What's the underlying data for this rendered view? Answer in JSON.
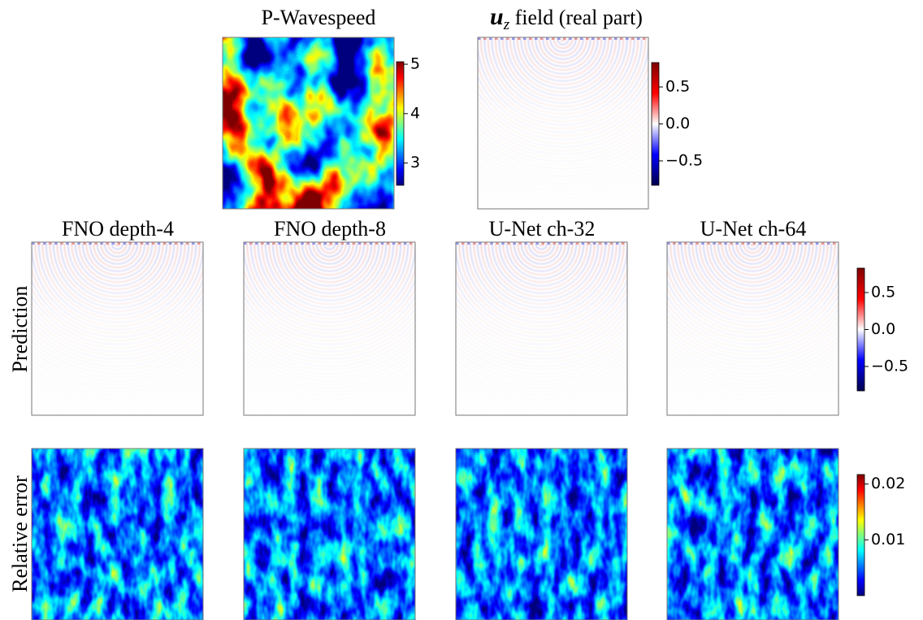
{
  "top_panels": [
    {
      "title": "P-Wavespeed"
    },
    {
      "title_symbol": "u",
      "title_subscript": "z",
      "title_text": " field (real part)"
    }
  ],
  "column_titles": [
    "FNO depth-4",
    "FNO depth-8",
    "U-Net ch-32",
    "U-Net ch-64"
  ],
  "row_labels": [
    "Prediction",
    "Relative error"
  ],
  "colorbars": [
    {
      "colormap": "jet",
      "lim": [
        2.55,
        5.05
      ],
      "ticks": [
        3,
        4,
        5
      ]
    },
    {
      "colormap": "seismic",
      "lim": [
        -0.83,
        0.83
      ],
      "ticks": [
        {
          "value": -0.5,
          "label": "−0.5"
        },
        {
          "value": 0,
          "label": "0.0"
        },
        0.5
      ]
    },
    {
      "colormap": "seismic",
      "lim": [
        -0.83,
        0.83
      ],
      "ticks": [
        {
          "value": -0.5,
          "label": "−0.5"
        },
        {
          "value": 0,
          "label": "0.0"
        },
        0.5
      ]
    },
    {
      "colormap": "jet",
      "lim": [
        0,
        0.0217
      ],
      "ticks": [
        0.01,
        0.02
      ]
    }
  ]
}
